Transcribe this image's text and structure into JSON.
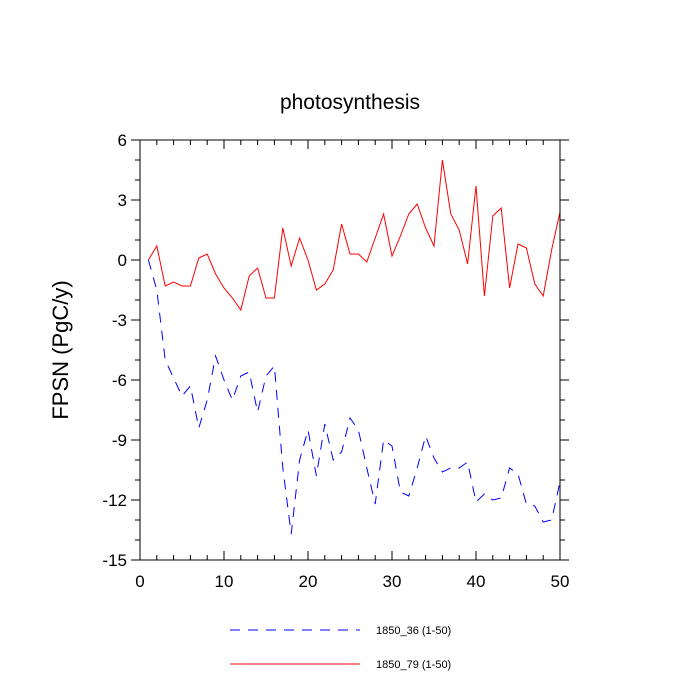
{
  "chart_data": {
    "type": "line",
    "title": "photosynthesis",
    "xlabel": "",
    "ylabel": "FPSN  (PgC/y)",
    "xlim": [
      0,
      50
    ],
    "ylim": [
      -15,
      6
    ],
    "x_ticks": [
      0,
      10,
      20,
      30,
      40,
      50
    ],
    "y_ticks": [
      6,
      3,
      0,
      -3,
      -6,
      -9,
      -12,
      -15
    ],
    "x_tick_labels": [
      "0",
      "10",
      "20",
      "30",
      "40",
      "50"
    ],
    "y_tick_labels": [
      "6",
      "3",
      "0",
      "-3",
      "-6",
      "-9",
      "-12",
      "-15"
    ],
    "legend_position": "bottom",
    "x": [
      1,
      2,
      3,
      4,
      5,
      6,
      7,
      8,
      9,
      10,
      11,
      12,
      13,
      14,
      15,
      16,
      17,
      18,
      19,
      20,
      21,
      22,
      23,
      24,
      25,
      26,
      27,
      28,
      29,
      30,
      31,
      32,
      33,
      34,
      35,
      36,
      37,
      38,
      39,
      40,
      41,
      42,
      43,
      44,
      45,
      46,
      47,
      48,
      49,
      50
    ],
    "series": [
      {
        "name": "1850_36 (1-50)",
        "color": "#0000ff",
        "style": "dashed",
        "values": [
          0,
          -1.5,
          -5.0,
          -5.9,
          -6.8,
          -6.3,
          -8.4,
          -7.0,
          -4.8,
          -6.0,
          -7.0,
          -5.8,
          -5.6,
          -7.6,
          -5.8,
          -5.3,
          -10.4,
          -13.7,
          -10.0,
          -8.5,
          -10.8,
          -8.2,
          -10.0,
          -9.6,
          -7.9,
          -8.5,
          -10.4,
          -12.2,
          -9.0,
          -9.3,
          -11.6,
          -11.8,
          -10.4,
          -8.8,
          -9.9,
          -10.6,
          -10.4,
          -10.4,
          -10.1,
          -12.1,
          -11.7,
          -12.0,
          -11.9,
          -10.4,
          -10.7,
          -12.2,
          -12.3,
          -13.1,
          -13.0,
          -11.1
        ]
      },
      {
        "name": "1850_79 (1-50)",
        "color": "#ff0000",
        "style": "solid",
        "values": [
          0,
          0.7,
          -1.3,
          -1.1,
          -1.3,
          -1.3,
          0.1,
          0.3,
          -0.7,
          -1.4,
          -1.9,
          -2.5,
          -0.8,
          -0.4,
          -1.9,
          -1.9,
          1.6,
          -0.3,
          1.1,
          0,
          -1.5,
          -1.2,
          -0.5,
          1.8,
          0.3,
          0.3,
          -0.1,
          1.1,
          2.3,
          0.2,
          1.2,
          2.3,
          2.8,
          1.6,
          0.7,
          5.0,
          2.3,
          1.5,
          -0.2,
          3.7,
          -1.8,
          2.2,
          2.6,
          -1.4,
          0.8,
          0.6,
          -1.2,
          -1.8,
          0.5,
          2.4
        ]
      }
    ]
  }
}
